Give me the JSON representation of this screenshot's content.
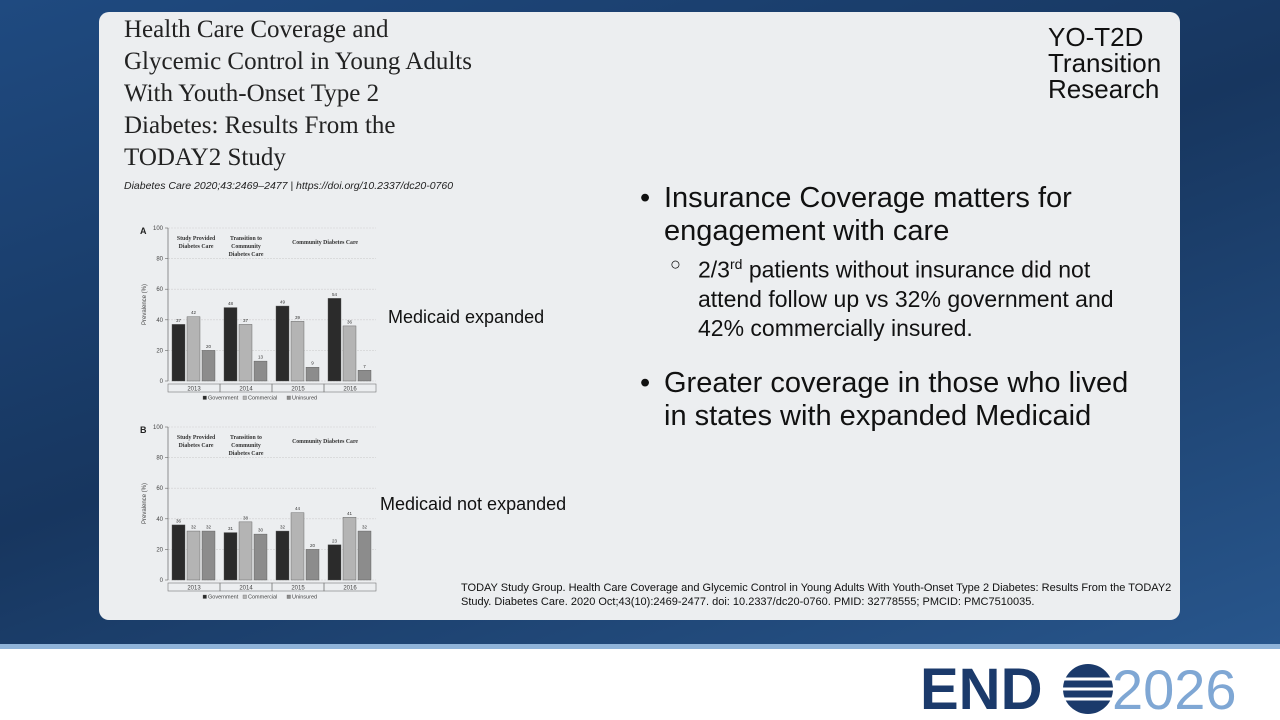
{
  "title_lines": [
    "Health Care Coverage and",
    "Glycemic Control in Young Adults",
    "With Youth-Onset Type 2",
    "Diabetes: Results From the",
    "TODAY2 Study"
  ],
  "citation": "Diabetes Care 2020;43:2469–2477 | https://doi.org/10.2337/dc20-0760",
  "brand_lines": [
    "YO-T2D",
    "Transition",
    "Research"
  ],
  "captions": [
    "Medicaid expanded",
    "Medicaid not expanded"
  ],
  "bullets": [
    {
      "text": "Insurance Coverage matters for engagement with care",
      "sub": [
        {
          "pre": "2/3",
          "sup": "rd",
          "rest": " patients without insurance did not attend follow up vs 32% government and 42% commercially insured."
        }
      ]
    },
    {
      "text": "Greater coverage in those who lived in states with expanded Medicaid",
      "sub": []
    }
  ],
  "reference": "TODAY Study Group. Health Care Coverage and Glycemic Control in Young Adults With Youth-Onset Type 2 Diabetes: Results From the TODAY2 Study. Diabetes Care. 2020 Oct;43(10):2469-2477. doi: 10.2337/dc20-0760. PMID: 32778555; PMCID: PMC7510035.",
  "logo": {
    "left": "END",
    "right": "2026"
  },
  "chart_data": [
    {
      "type": "bar",
      "panel_label": "A",
      "ylabel": "Prevalence (%)",
      "phases": [
        [
          "Study Provided",
          "Diabetes Care"
        ],
        [
          "Transition to",
          "Community",
          "Diabetes Care"
        ],
        [
          "Community Diabetes Care"
        ]
      ],
      "categories": [
        "2013",
        "2014",
        "2015",
        "2016"
      ],
      "series": [
        {
          "name": "Government",
          "color": "#2b2b2b",
          "values": [
            37,
            48,
            49,
            54
          ]
        },
        {
          "name": "Commercial",
          "color": "#b4b4b4",
          "values": [
            42,
            37,
            39,
            36
          ]
        },
        {
          "name": "Uninsured",
          "color": "#8c8c8c",
          "values": [
            20,
            13,
            9,
            7
          ]
        }
      ],
      "ylim": [
        0,
        100
      ],
      "yticks": [
        0,
        20,
        40,
        60,
        80,
        100
      ],
      "grid": true,
      "legend": "bottom"
    },
    {
      "type": "bar",
      "panel_label": "B",
      "ylabel": "Prevalence (%)",
      "phases": [
        [
          "Study Provided",
          "Diabetes Care"
        ],
        [
          "Transition to",
          "Community",
          "Diabetes Care"
        ],
        [
          "Community Diabetes Care"
        ]
      ],
      "categories": [
        "2013",
        "2014",
        "2015",
        "2016"
      ],
      "series": [
        {
          "name": "Government",
          "color": "#2b2b2b",
          "values": [
            36,
            31,
            32,
            23
          ]
        },
        {
          "name": "Commercial",
          "color": "#b4b4b4",
          "values": [
            32,
            38,
            44,
            41
          ]
        },
        {
          "name": "Uninsured",
          "color": "#8c8c8c",
          "values": [
            32,
            30,
            20,
            32
          ]
        }
      ],
      "ylim": [
        0,
        100
      ],
      "yticks": [
        0,
        20,
        40,
        60,
        80,
        100
      ],
      "grid": true,
      "legend": "bottom"
    }
  ]
}
